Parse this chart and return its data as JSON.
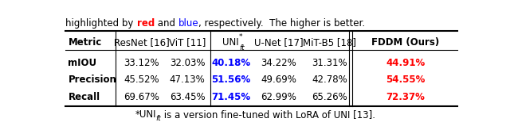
{
  "rows": [
    {
      "metric": "mIOU",
      "values": [
        "33.12%",
        "32.03%",
        "40.18%",
        "34.22%",
        "31.31%",
        "44.91%"
      ],
      "colors": [
        "black",
        "black",
        "blue",
        "black",
        "black",
        "red"
      ]
    },
    {
      "metric": "Precision",
      "values": [
        "45.52%",
        "47.13%",
        "51.56%",
        "49.69%",
        "42.78%",
        "54.55%"
      ],
      "colors": [
        "black",
        "black",
        "blue",
        "black",
        "black",
        "red"
      ]
    },
    {
      "metric": "Recall",
      "values": [
        "69.67%",
        "63.45%",
        "71.45%",
        "62.99%",
        "65.26%",
        "72.37%"
      ],
      "colors": [
        "black",
        "black",
        "blue",
        "black",
        "black",
        "red"
      ]
    }
  ],
  "top_text": "highlighted by ",
  "top_red": "red",
  "top_and": " and ",
  "top_blue": "blue",
  "top_rest": ", respectively.  The higher is better.",
  "background_color": "#ffffff",
  "fs": 8.5
}
